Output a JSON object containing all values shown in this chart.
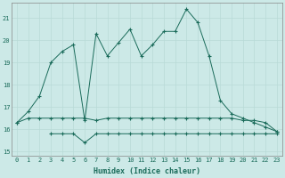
{
  "xlabel": "Humidex (Indice chaleur)",
  "x": [
    0,
    1,
    2,
    3,
    4,
    5,
    6,
    7,
    8,
    9,
    10,
    11,
    12,
    13,
    14,
    15,
    16,
    17,
    18,
    19,
    20,
    21,
    22,
    23
  ],
  "line1_y": [
    16.3,
    16.8,
    17.5,
    19.0,
    19.5,
    19.8,
    16.4,
    20.3,
    19.3,
    19.9,
    20.5,
    19.3,
    19.8,
    20.4,
    20.4,
    21.4,
    20.8,
    19.3,
    17.3,
    16.7,
    16.5,
    16.3,
    16.1,
    15.9
  ],
  "line2_y": [
    16.3,
    16.5,
    16.5,
    16.5,
    16.5,
    16.5,
    16.5,
    16.4,
    16.5,
    16.5,
    16.5,
    16.5,
    16.5,
    16.5,
    16.5,
    16.5,
    16.5,
    16.5,
    16.5,
    16.5,
    16.4,
    16.4,
    16.3,
    15.9
  ],
  "line3_y": [
    null,
    null,
    null,
    15.8,
    15.8,
    15.8,
    15.4,
    15.8,
    15.8,
    15.8,
    15.8,
    15.8,
    15.8,
    15.8,
    15.8,
    15.8,
    15.8,
    15.8,
    15.8,
    15.8,
    15.8,
    15.8,
    15.8,
    15.8
  ],
  "line_color": "#1a6b5a",
  "bg_color": "#cce9e7",
  "grid_color": "#b8dad7",
  "ylim": [
    14.8,
    21.7
  ],
  "xlim": [
    -0.5,
    23.5
  ],
  "yticks": [
    15,
    16,
    17,
    18,
    19,
    20,
    21
  ],
  "xticks": [
    0,
    1,
    2,
    3,
    4,
    5,
    6,
    7,
    8,
    9,
    10,
    11,
    12,
    13,
    14,
    15,
    16,
    17,
    18,
    19,
    20,
    21,
    22,
    23
  ]
}
